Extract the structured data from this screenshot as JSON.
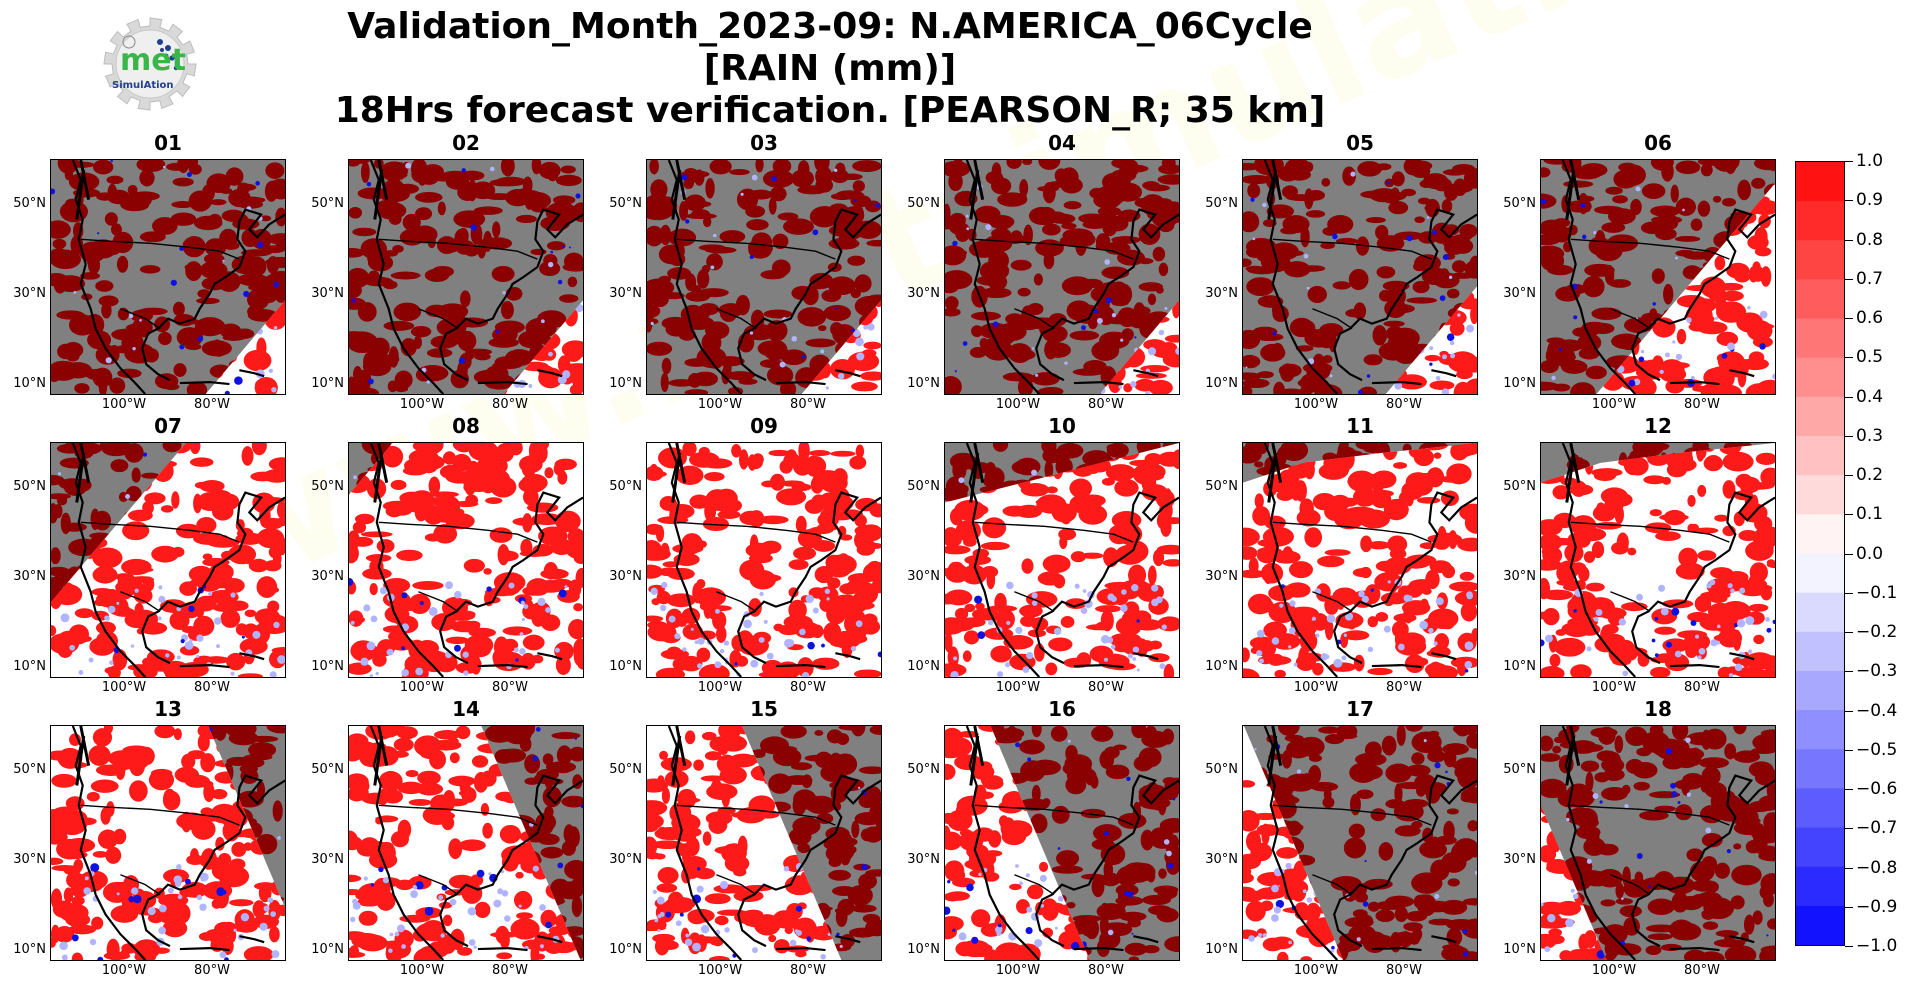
{
  "header": {
    "title_line1": "Validation_Month_2023-09: N.AMERICA_06Cycle [RAIN (mm)]",
    "title_line2": "18Hrs forecast verification.  [PEARSON_R; 35 km]"
  },
  "logo": {
    "icon": "gear-logo-icon",
    "text_main": "met",
    "text_sub": "SimulAtion",
    "colors": {
      "gear": "#d9d9d9",
      "met": "#3ab54a",
      "sub": "#1f3f8f",
      "dots": "#1f3f8f"
    }
  },
  "watermark_text": "www.metsimulation.com",
  "axes": {
    "lat_ticks": [
      "50°N",
      "30°N",
      "10°N"
    ],
    "lon_ticks": [
      "100°W",
      "80°W"
    ]
  },
  "panels": [
    {
      "label": "01",
      "sun_angle": 0,
      "sun_offset": 0
    },
    {
      "label": "02",
      "sun_angle": 0,
      "sun_offset": 0
    },
    {
      "label": "03",
      "sun_angle": 0,
      "sun_offset": 0
    },
    {
      "label": "04",
      "sun_angle": 0,
      "sun_offset": 0
    },
    {
      "label": "05",
      "sun_angle": 0,
      "sun_offset": 0.03
    },
    {
      "label": "06",
      "sun_angle": 0,
      "sun_offset": 0.25
    },
    {
      "label": "07",
      "sun_angle": 0,
      "sun_offset": 0.55
    },
    {
      "label": "08",
      "sun_angle": 0,
      "sun_offset": 0.78
    },
    {
      "label": "09",
      "sun_angle": 0,
      "sun_offset": 0.92
    },
    {
      "label": "10",
      "sun_angle": 0,
      "sun_offset": 0.97
    },
    {
      "label": "11",
      "sun_angle": 0,
      "sun_offset": 1.0
    },
    {
      "label": "12",
      "sun_angle": 0,
      "sun_offset": 1.0
    },
    {
      "label": "13",
      "sun_angle": 1,
      "sun_offset": 0.15
    },
    {
      "label": "14",
      "sun_angle": 1,
      "sun_offset": 0.25
    },
    {
      "label": "15",
      "sun_angle": 1,
      "sun_offset": 0.4
    },
    {
      "label": "16",
      "sun_angle": 1,
      "sun_offset": 0.6
    },
    {
      "label": "17",
      "sun_angle": 1,
      "sun_offset": 0.78
    },
    {
      "label": "18",
      "sun_angle": 1,
      "sun_offset": 0.92
    }
  ],
  "colorbar": {
    "min": -1.0,
    "max": 1.0,
    "step": 0.1,
    "labels": [
      "1.0",
      "0.9",
      "0.8",
      "0.7",
      "0.6",
      "0.5",
      "0.4",
      "0.3",
      "0.2",
      "0.1",
      "0.0",
      "−0.1",
      "−0.2",
      "−0.3",
      "−0.4",
      "−0.5",
      "−0.6",
      "−0.7",
      "−0.8",
      "−0.9",
      "−1.0"
    ],
    "colors": {
      "positive_max": "#ff0000",
      "negative_max": "#0000ff",
      "neutral": "#ffffff"
    }
  },
  "map_colors": {
    "night_background": "#808080",
    "night_fill": "#8b0000",
    "day_background": "#ffffff",
    "day_fill": "#ff1a1a",
    "low_corr": "#b0b4ff",
    "negative": "#1010e0",
    "coast": "#000000"
  }
}
